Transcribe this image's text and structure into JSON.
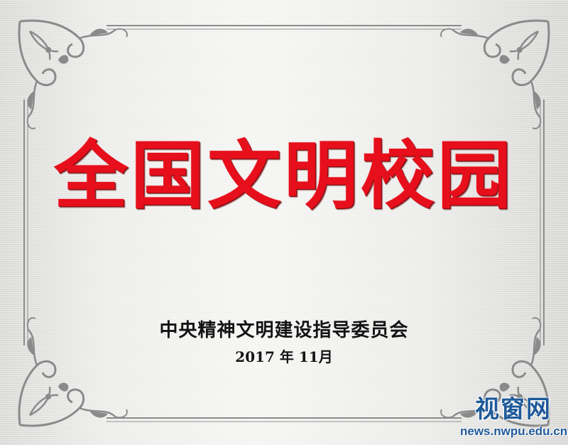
{
  "plaque": {
    "title": "全国文明校园",
    "organization": "中央精神文明建设指导委员会",
    "date": "2017 年 11月"
  },
  "watermark": {
    "title": "视窗网",
    "url": "news.nwpu.edu.cn"
  },
  "colors": {
    "title_red": "#e60f1b",
    "text_black": "#141414",
    "frame_gray": "#8a8a8a",
    "watermark_blue": "#1f5a99"
  },
  "icons": [
    "corner-flourish-icon"
  ]
}
